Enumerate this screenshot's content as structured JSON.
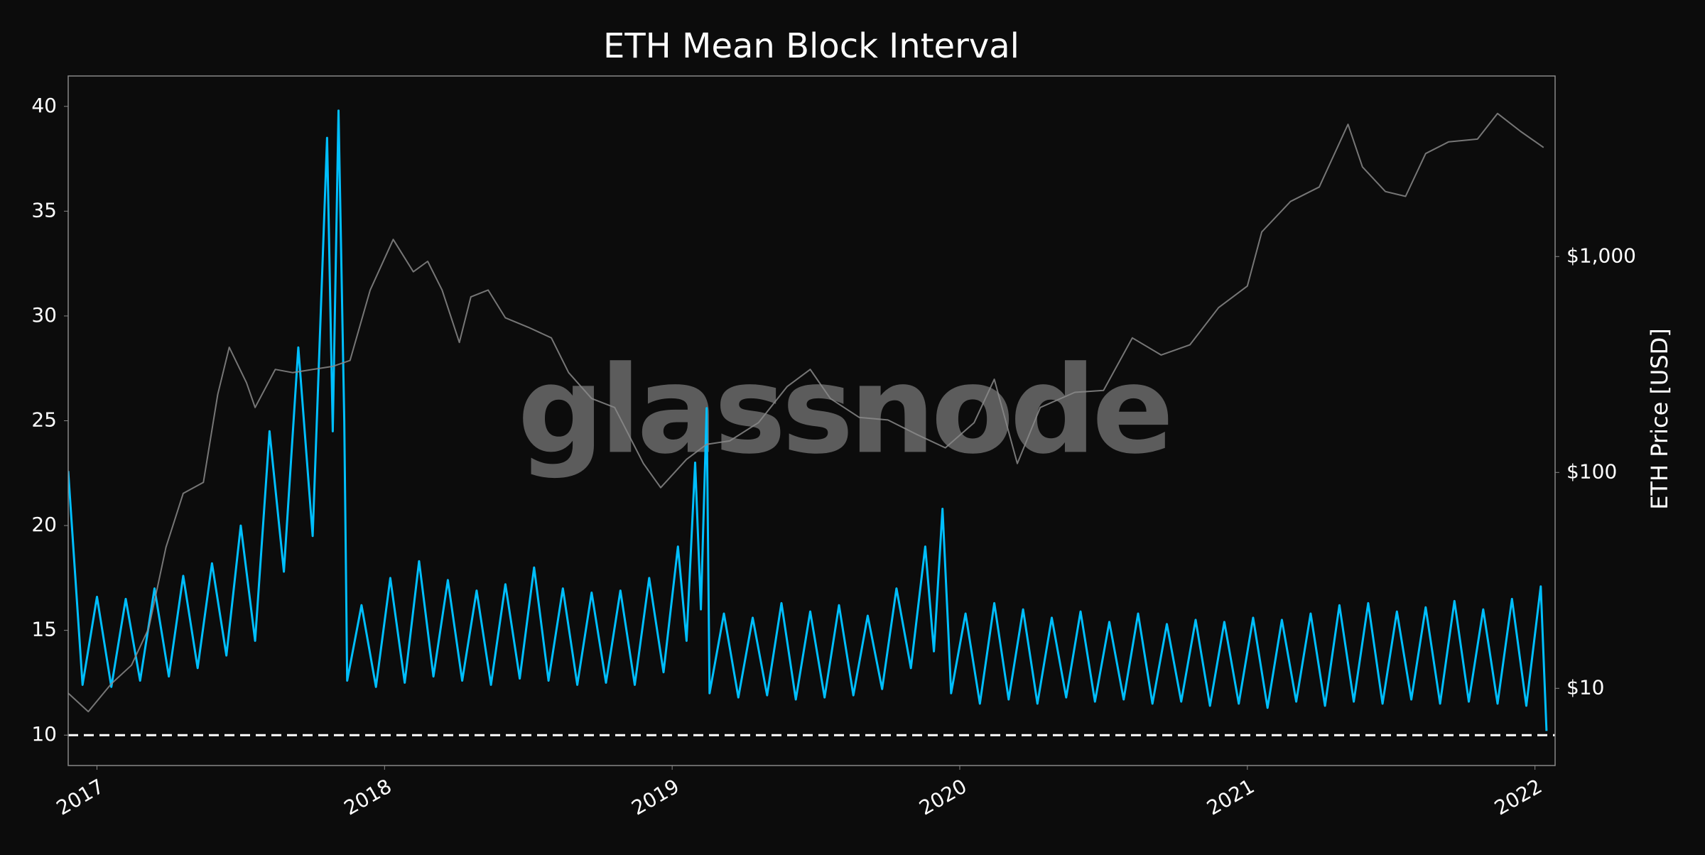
{
  "chart_data": {
    "type": "line",
    "title": "ETH Mean Block Interval",
    "y2label": "ETH Price [USD]",
    "watermark": "glassnode",
    "xlim": [
      2016.9,
      2022.07
    ],
    "xticks": [
      2017,
      2018,
      2019,
      2020,
      2021,
      2022
    ],
    "ylim": [
      8.55,
      41.45
    ],
    "yticks": [
      10,
      15,
      20,
      25,
      30,
      35,
      40
    ],
    "y2lim": [
      4.39,
      6860
    ],
    "y2scale": "log",
    "y2ticks": [
      {
        "value": 10,
        "label": "$10"
      },
      {
        "value": 100,
        "label": "$100"
      },
      {
        "value": 1000,
        "label": "$1,000"
      }
    ],
    "grid": false,
    "reference_line": {
      "value": 10,
      "color": "#ffffff",
      "style": "dashed"
    },
    "series": [
      {
        "color": "#00bfff",
        "x": [
          2016.9,
          2016.95,
          2017.0,
          2017.05,
          2017.1,
          2017.15,
          2017.2,
          2017.25,
          2017.3,
          2017.35,
          2017.4,
          2017.45,
          2017.5,
          2017.55,
          2017.6,
          2017.65,
          2017.7,
          2017.75,
          2017.8,
          2017.82,
          2017.84,
          2017.86,
          2017.87,
          2017.92,
          2017.97,
          2018.02,
          2018.07,
          2018.12,
          2018.17,
          2018.22,
          2018.27,
          2018.32,
          2018.37,
          2018.42,
          2018.47,
          2018.52,
          2018.57,
          2018.62,
          2018.67,
          2018.72,
          2018.77,
          2018.82,
          2018.87,
          2018.92,
          2018.97,
          2019.02,
          2019.05,
          2019.08,
          2019.1,
          2019.12,
          2019.13,
          2019.18,
          2019.23,
          2019.28,
          2019.33,
          2019.38,
          2019.43,
          2019.48,
          2019.53,
          2019.58,
          2019.63,
          2019.68,
          2019.73,
          2019.78,
          2019.83,
          2019.88,
          2019.91,
          2019.94,
          2019.96,
          2019.97,
          2020.02,
          2020.07,
          2020.12,
          2020.17,
          2020.22,
          2020.27,
          2020.32,
          2020.37,
          2020.42,
          2020.47,
          2020.52,
          2020.57,
          2020.62,
          2020.67,
          2020.72,
          2020.77,
          2020.82,
          2020.87,
          2020.92,
          2020.97,
          2021.02,
          2021.07,
          2021.12,
          2021.17,
          2021.22,
          2021.27,
          2021.32,
          2021.37,
          2021.42,
          2021.47,
          2021.52,
          2021.57,
          2021.62,
          2021.67,
          2021.72,
          2021.77,
          2021.82,
          2021.87,
          2021.92,
          2021.97,
          2022.02,
          2022.04
        ],
        "values": [
          22.6,
          12.4,
          16.6,
          12.3,
          16.5,
          12.6,
          17.0,
          12.8,
          17.6,
          13.2,
          18.2,
          13.8,
          20.0,
          14.5,
          24.5,
          17.8,
          28.5,
          19.5,
          38.5,
          24.5,
          39.8,
          25.0,
          12.6,
          16.2,
          12.3,
          17.5,
          12.5,
          18.3,
          12.8,
          17.4,
          12.6,
          16.9,
          12.4,
          17.2,
          12.7,
          18.0,
          12.6,
          17.0,
          12.4,
          16.8,
          12.5,
          16.9,
          12.4,
          17.5,
          13.0,
          19.0,
          14.5,
          23.0,
          16.0,
          25.6,
          12.0,
          15.8,
          11.8,
          15.6,
          11.9,
          16.3,
          11.7,
          15.9,
          11.8,
          16.2,
          11.9,
          15.7,
          12.2,
          17.0,
          13.2,
          19.0,
          14.0,
          20.8,
          15.0,
          12.0,
          15.8,
          11.5,
          16.3,
          11.7,
          16.0,
          11.5,
          15.6,
          11.8,
          15.9,
          11.6,
          15.4,
          11.7,
          15.8,
          11.5,
          15.3,
          11.6,
          15.5,
          11.4,
          15.4,
          11.5,
          15.6,
          11.3,
          15.5,
          11.6,
          15.8,
          11.4,
          16.2,
          11.6,
          16.3,
          11.5,
          15.9,
          11.7,
          16.1,
          11.5,
          16.4,
          11.6,
          16.0,
          11.5,
          16.5,
          11.4,
          17.1,
          10.2
        ]
      },
      {
        "color": "#8a8a8a",
        "axis": "y2",
        "x": [
          2016.9,
          2016.97,
          2017.05,
          2017.12,
          2017.18,
          2017.24,
          2017.3,
          2017.37,
          2017.42,
          2017.46,
          2017.52,
          2017.55,
          2017.62,
          2017.68,
          2017.75,
          2017.82,
          2017.88,
          2017.95,
          2018.03,
          2018.1,
          2018.15,
          2018.2,
          2018.26,
          2018.3,
          2018.36,
          2018.42,
          2018.5,
          2018.58,
          2018.64,
          2018.72,
          2018.8,
          2018.9,
          2018.96,
          2019.05,
          2019.12,
          2019.2,
          2019.3,
          2019.4,
          2019.48,
          2019.55,
          2019.65,
          2019.75,
          2019.85,
          2019.95,
          2020.05,
          2020.12,
          2020.2,
          2020.28,
          2020.4,
          2020.5,
          2020.6,
          2020.7,
          2020.8,
          2020.9,
          2021.0,
          2021.05,
          2021.15,
          2021.25,
          2021.35,
          2021.4,
          2021.48,
          2021.55,
          2021.62,
          2021.7,
          2021.8,
          2021.87,
          2021.95,
          2022.03
        ],
        "values": [
          9.5,
          7.8,
          10.5,
          12.8,
          19,
          45,
          80,
          90,
          230,
          380,
          260,
          200,
          300,
          290,
          300,
          310,
          330,
          700,
          1200,
          850,
          950,
          700,
          400,
          650,
          700,
          520,
          470,
          420,
          290,
          220,
          200,
          110,
          85,
          115,
          135,
          140,
          170,
          250,
          300,
          220,
          180,
          175,
          150,
          130,
          170,
          270,
          110,
          200,
          235,
          240,
          420,
          350,
          390,
          580,
          730,
          1300,
          1800,
          2100,
          4100,
          2600,
          2000,
          1900,
          3000,
          3400,
          3500,
          4600,
          3800,
          3200
        ]
      }
    ]
  }
}
